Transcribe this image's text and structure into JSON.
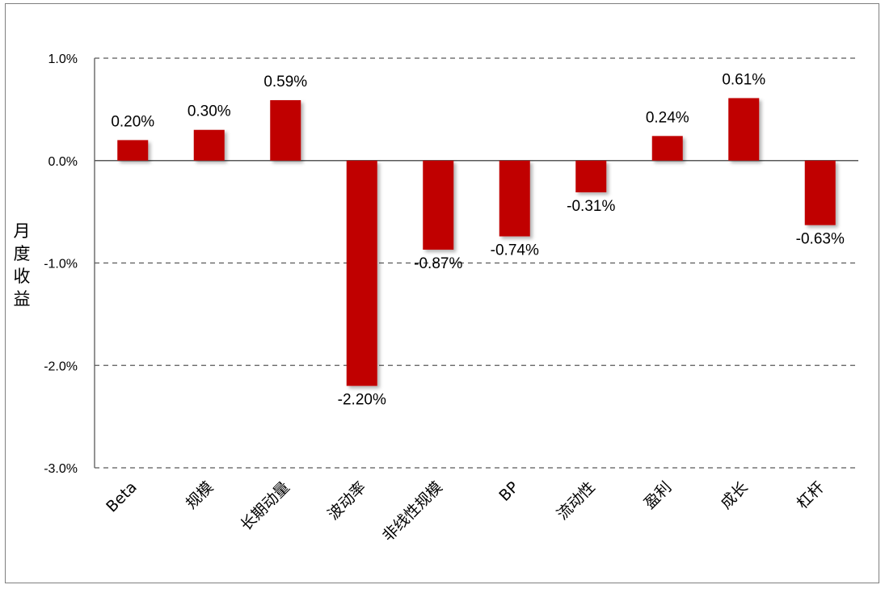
{
  "chart_data": {
    "type": "bar",
    "title": "",
    "xlabel": "",
    "ylabel": "月度收益",
    "ylim": [
      -3.0,
      1.0
    ],
    "yticks": [
      1.0,
      0.0,
      -1.0,
      -2.0,
      -3.0
    ],
    "ytick_labels": [
      "1.0%",
      "0.0%",
      "-1.0%",
      "-2.0%",
      "-3.0%"
    ],
    "categories": [
      "Beta",
      "规模",
      "长期动量",
      "波动率",
      "非线性规模",
      "BP",
      "流动性",
      "盈利",
      "成长",
      "杠杆"
    ],
    "values": [
      0.2,
      0.3,
      0.59,
      -2.2,
      -0.87,
      -0.74,
      -0.31,
      0.24,
      0.61,
      -0.63
    ],
    "data_labels": [
      "0.20%",
      "0.30%",
      "0.59%",
      "-2.20%",
      "-0.87%",
      "-0.74%",
      "-0.31%",
      "0.24%",
      "0.61%",
      "-0.63%"
    ],
    "grid": "dashed horizontal",
    "bar_color": "#c00000"
  }
}
